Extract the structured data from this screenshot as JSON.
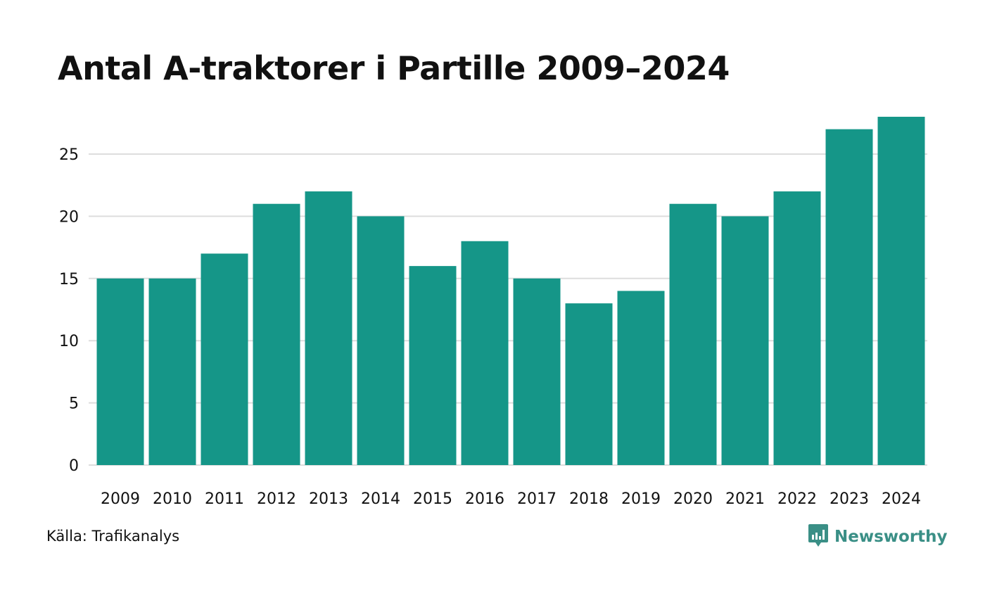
{
  "colors": {
    "bar": "#159688",
    "grid": "#dddddd",
    "text": "#111111",
    "brand": "#3a8f86"
  },
  "title": "Antal A-traktorer i Partille 2009–2024",
  "source": "Källa: Trafikanalys",
  "brand": {
    "name": "Newsworthy",
    "icon": "newsworthy-logo-icon"
  },
  "chart_data": {
    "type": "bar",
    "title": "Antal A-traktorer i Partille 2009–2024",
    "xlabel": "",
    "ylabel": "",
    "categories": [
      "2009",
      "2010",
      "2011",
      "2012",
      "2013",
      "2014",
      "2015",
      "2016",
      "2017",
      "2018",
      "2019",
      "2020",
      "2021",
      "2022",
      "2023",
      "2024"
    ],
    "values": [
      15,
      15,
      17,
      21,
      22,
      20,
      16,
      18,
      15,
      13,
      14,
      21,
      20,
      22,
      27,
      28
    ],
    "ylim": [
      0,
      28
    ],
    "yticks": [
      0,
      5,
      10,
      15,
      20,
      25
    ],
    "grid": true,
    "legend": "none"
  }
}
